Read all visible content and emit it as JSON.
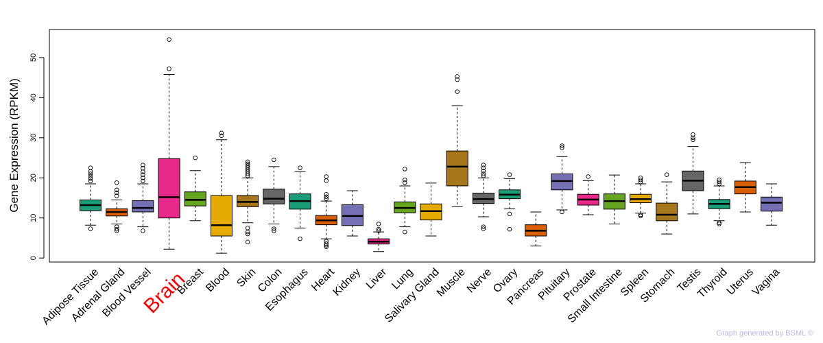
{
  "chart_data": {
    "type": "boxplot",
    "title": "",
    "xlabel": "",
    "ylabel": "Gene Expression (RPKM)",
    "ylim": [
      -1,
      57
    ],
    "yticks": [
      0,
      10,
      20,
      30,
      40,
      50
    ],
    "highlight": "Brain",
    "highlight_color": "#ff0000",
    "categories": [
      {
        "name": "Adipose Tissue",
        "color": "#1b9e77",
        "min": 8.2,
        "q1": 11.8,
        "median": 13.2,
        "q3": 14.5,
        "max": 18.5,
        "outliers": [
          7.3,
          19.2,
          19.8,
          20.4,
          21.0,
          21.6,
          22.5
        ]
      },
      {
        "name": "Adrenal Gland",
        "color": "#d95f02",
        "min": 8.5,
        "q1": 10.5,
        "median": 11.5,
        "q3": 12.3,
        "max": 14.5,
        "outliers": [
          6.8,
          7.2,
          7.8,
          15.5,
          16.3,
          17.0,
          18.8
        ]
      },
      {
        "name": "Blood Vessel",
        "color": "#7570b3",
        "min": 7.8,
        "q1": 11.5,
        "median": 12.5,
        "q3": 14.3,
        "max": 18.5,
        "outliers": [
          6.8,
          19.2,
          20.0,
          20.8,
          21.5,
          22.4,
          23.2
        ]
      },
      {
        "name": "Brain",
        "color": "#e7298a",
        "min": 2.2,
        "q1": 10.0,
        "median": 15.2,
        "q3": 24.8,
        "max": 45.8,
        "outliers": [
          47.2,
          54.5
        ]
      },
      {
        "name": "Breast",
        "color": "#66a61e",
        "min": 9.3,
        "q1": 13.0,
        "median": 14.5,
        "q3": 16.5,
        "max": 21.8,
        "outliers": [
          25.0
        ]
      },
      {
        "name": "Blood",
        "color": "#e6ab02",
        "min": 1.2,
        "q1": 5.5,
        "median": 8.2,
        "q3": 15.6,
        "max": 29.5,
        "outliers": [
          30.5,
          31.2
        ]
      },
      {
        "name": "Skin",
        "color": "#a6761d",
        "min": 8.8,
        "q1": 12.8,
        "median": 14.0,
        "q3": 15.6,
        "max": 20.0,
        "outliers": [
          4.0,
          6.0,
          6.5,
          7.5,
          20.5,
          21.0,
          21.5,
          22.0,
          22.5,
          23.0,
          23.5,
          24.0
        ]
      },
      {
        "name": "Colon",
        "color": "#666666",
        "min": 8.5,
        "q1": 13.5,
        "median": 14.8,
        "q3": 17.2,
        "max": 22.8,
        "outliers": [
          6.8,
          7.3,
          24.5
        ]
      },
      {
        "name": "Esophagus",
        "color": "#1b9e77",
        "min": 7.5,
        "q1": 12.2,
        "median": 14.2,
        "q3": 16.0,
        "max": 21.5,
        "outliers": [
          4.8,
          22.5
        ]
      },
      {
        "name": "Heart",
        "color": "#d95f02",
        "min": 4.8,
        "q1": 8.3,
        "median": 9.4,
        "q3": 10.6,
        "max": 14.2,
        "outliers": [
          2.8,
          3.2,
          3.6,
          4.2,
          14.8,
          15.3,
          15.9,
          19.3,
          20.3
        ]
      },
      {
        "name": "Kidney",
        "color": "#7570b3",
        "min": 5.5,
        "q1": 8.1,
        "median": 10.5,
        "q3": 13.3,
        "max": 16.8,
        "outliers": []
      },
      {
        "name": "Liver",
        "color": "#e7298a",
        "min": 1.6,
        "q1": 3.5,
        "median": 4.1,
        "q3": 4.8,
        "max": 6.5,
        "outliers": [
          6.8,
          7.2,
          8.5
        ]
      },
      {
        "name": "Lung",
        "color": "#66a61e",
        "min": 7.8,
        "q1": 11.3,
        "median": 12.5,
        "q3": 14.0,
        "max": 18.0,
        "outliers": [
          6.5,
          18.8,
          19.5,
          22.2
        ]
      },
      {
        "name": "Salivary Gland",
        "color": "#e6ab02",
        "min": 5.5,
        "q1": 9.5,
        "median": 11.7,
        "q3": 13.5,
        "max": 18.7,
        "outliers": []
      },
      {
        "name": "Muscle",
        "color": "#a6761d",
        "min": 12.8,
        "q1": 18.0,
        "median": 22.8,
        "q3": 26.7,
        "max": 38.0,
        "outliers": [
          41.5,
          44.5,
          45.3
        ]
      },
      {
        "name": "Nerve",
        "color": "#666666",
        "min": 10.3,
        "q1": 13.6,
        "median": 14.7,
        "q3": 16.2,
        "max": 20.0,
        "outliers": [
          7.3,
          7.8,
          20.5,
          21.0,
          21.7,
          22.5,
          23.2
        ]
      },
      {
        "name": "Ovary",
        "color": "#1b9e77",
        "min": 12.3,
        "q1": 14.8,
        "median": 15.8,
        "q3": 17.0,
        "max": 19.8,
        "outliers": [
          7.2,
          11.0,
          20.8
        ]
      },
      {
        "name": "Pancreas",
        "color": "#d95f02",
        "min": 3.0,
        "q1": 5.5,
        "median": 6.8,
        "q3": 8.3,
        "max": 11.5,
        "outliers": []
      },
      {
        "name": "Pituitary",
        "color": "#7570b3",
        "min": 12.0,
        "q1": 17.0,
        "median": 19.2,
        "q3": 21.0,
        "max": 25.3,
        "outliers": [
          11.5,
          27.5,
          28.0
        ]
      },
      {
        "name": "Prostate",
        "color": "#e7298a",
        "min": 10.8,
        "q1": 13.2,
        "median": 14.6,
        "q3": 15.9,
        "max": 19.3,
        "outliers": [
          20.3
        ]
      },
      {
        "name": "Small Intestine",
        "color": "#66a61e",
        "min": 8.5,
        "q1": 12.2,
        "median": 14.2,
        "q3": 16.0,
        "max": 20.7,
        "outliers": []
      },
      {
        "name": "Spleen",
        "color": "#e6ab02",
        "min": 11.2,
        "q1": 13.8,
        "median": 14.7,
        "q3": 15.9,
        "max": 18.5,
        "outliers": [
          10.5,
          10.8,
          19.0,
          19.5,
          20.0
        ]
      },
      {
        "name": "Stomach",
        "color": "#a6761d",
        "min": 6.0,
        "q1": 9.3,
        "median": 10.8,
        "q3": 13.7,
        "max": 19.0,
        "outliers": [
          20.8
        ]
      },
      {
        "name": "Testis",
        "color": "#666666",
        "min": 11.0,
        "q1": 16.8,
        "median": 19.3,
        "q3": 21.7,
        "max": 27.8,
        "outliers": [
          29.5,
          30.0,
          30.8
        ]
      },
      {
        "name": "Thyroid",
        "color": "#1b9e77",
        "min": 9.3,
        "q1": 12.3,
        "median": 13.5,
        "q3": 14.6,
        "max": 18.0,
        "outliers": [
          8.5,
          8.8,
          18.5,
          19.0,
          19.5
        ]
      },
      {
        "name": "Uterus",
        "color": "#d95f02",
        "min": 11.5,
        "q1": 16.0,
        "median": 17.7,
        "q3": 19.2,
        "max": 23.8,
        "outliers": []
      },
      {
        "name": "Vagina",
        "color": "#7570b3",
        "min": 8.2,
        "q1": 11.7,
        "median": 13.8,
        "q3": 15.2,
        "max": 18.5,
        "outliers": []
      }
    ]
  },
  "credit": "Graph generated by BSML ©"
}
